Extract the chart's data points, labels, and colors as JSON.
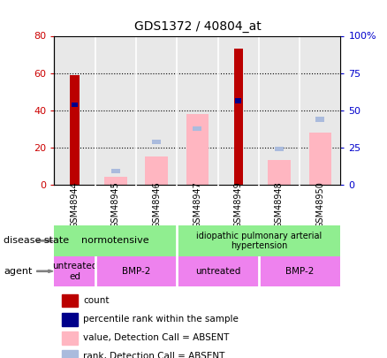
{
  "title": "GDS1372 / 40804_at",
  "samples": [
    "GSM48944",
    "GSM48945",
    "GSM48946",
    "GSM48947",
    "GSM48949",
    "GSM48948",
    "GSM48950"
  ],
  "count_values": [
    59,
    0,
    0,
    0,
    73,
    0,
    0
  ],
  "percentile_values": [
    43,
    0,
    0,
    0,
    45,
    0,
    0
  ],
  "absent_value_values": [
    0,
    4,
    15,
    38,
    0,
    13,
    28
  ],
  "absent_rank_values": [
    0,
    7,
    23,
    30,
    0,
    19,
    35
  ],
  "left_ylim": [
    0,
    80
  ],
  "right_ylim": [
    0,
    100
  ],
  "left_yticks": [
    0,
    20,
    40,
    60,
    80
  ],
  "right_yticks": [
    0,
    25,
    50,
    75,
    100
  ],
  "right_yticklabels": [
    "0",
    "25",
    "50",
    "75",
    "100%"
  ],
  "left_yticklabels": [
    "0",
    "20",
    "40",
    "60",
    "80"
  ],
  "count_color": "#BB0000",
  "percentile_color": "#00008B",
  "absent_value_color": "#FFB6C1",
  "absent_rank_color": "#AABBDD",
  "disease_norm_color": "#90EE90",
  "disease_idio_color": "#90EE90",
  "agent_color": "#EE82EE",
  "background_color": "#ffffff",
  "plot_bg_color": "#e8e8e8",
  "left_label_color": "#CC0000",
  "right_label_color": "#0000CC",
  "legend_items": [
    {
      "label": "count",
      "color": "#BB0000"
    },
    {
      "label": "percentile rank within the sample",
      "color": "#00008B"
    },
    {
      "label": "value, Detection Call = ABSENT",
      "color": "#FFB6C1"
    },
    {
      "label": "rank, Detection Call = ABSENT",
      "color": "#AABBDD"
    }
  ]
}
